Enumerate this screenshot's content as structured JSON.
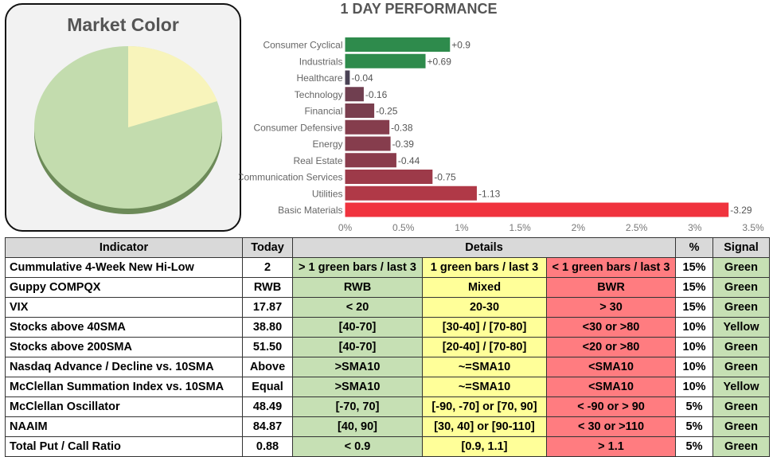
{
  "market_color": {
    "title": "Market Color",
    "colors": {
      "green": "#c3dcae",
      "yellow": "#f8f4bb",
      "green_side": "#6c8a58"
    }
  },
  "chart_data": {
    "type": "bar",
    "orientation": "horizontal",
    "title": "1 DAY PERFORMANCE",
    "categories": [
      "Consumer Cyclical",
      "Industrials",
      "Healthcare",
      "Technology",
      "Financial",
      "Consumer Defensive",
      "Energy",
      "Real Estate",
      "Communication Services",
      "Utilities",
      "Basic Materials"
    ],
    "values": [
      0.9,
      0.69,
      -0.04,
      -0.16,
      -0.25,
      -0.38,
      -0.39,
      -0.44,
      -0.75,
      -1.13,
      -3.29
    ],
    "value_labels": [
      "+0.9",
      "+0.69",
      "-0.04",
      "-0.16",
      "-0.25",
      "-0.38",
      "-0.39",
      "-0.44",
      "-0.75",
      "-1.13",
      "-3.29"
    ],
    "x_ticks": [
      "0%",
      "0.5%",
      "1%",
      "1.5%",
      "2%",
      "2.5%",
      "3%",
      "3.5%"
    ],
    "xlim": [
      0,
      3.5
    ],
    "bar_length": "absolute value",
    "colors": {
      "positive": "#2e8b4c",
      "negative_dark": "#4a4255",
      "negative_bright": "#f0333e"
    }
  },
  "table": {
    "headers": {
      "indicator": "Indicator",
      "today": "Today",
      "details": "Details",
      "pct": "%",
      "signal": "Signal"
    },
    "rows": [
      {
        "name": "Cummulative 4-Week New Hi-Low",
        "today": "2",
        "green": "> 1 green bars / last 3",
        "yellow": "1 green bars / last 3",
        "red": "< 1 green bars / last 3",
        "pct": "15%",
        "signal": "Green"
      },
      {
        "name": "Guppy COMPQX",
        "today": "RWB",
        "green": "RWB",
        "yellow": "Mixed",
        "red": "BWR",
        "pct": "15%",
        "signal": "Green"
      },
      {
        "name": "VIX",
        "today": "17.87",
        "green": "< 20",
        "yellow": "20-30",
        "red": "> 30",
        "pct": "15%",
        "signal": "Green"
      },
      {
        "name": "Stocks above 40SMA",
        "today": "38.80",
        "green": "[40-70]",
        "yellow": "[30-40] / [70-80]",
        "red": "<30 or >80",
        "pct": "10%",
        "signal": "Yellow"
      },
      {
        "name": "Stocks above 200SMA",
        "today": "51.50",
        "green": "[40-70]",
        "yellow": "[20-40] / [70-80]",
        "red": "<20 or >80",
        "pct": "10%",
        "signal": "Green"
      },
      {
        "name": "Nasdaq Advance / Decline vs. 10SMA",
        "today": "Above",
        "green": ">SMA10",
        "yellow": "~=SMA10",
        "red": "<SMA10",
        "pct": "10%",
        "signal": "Green"
      },
      {
        "name": "McClellan Summation Index vs. 10SMA",
        "today": "Equal",
        "green": ">SMA10",
        "yellow": "~=SMA10",
        "red": "<SMA10",
        "pct": "10%",
        "signal": "Yellow"
      },
      {
        "name": "McClellan Oscillator",
        "today": "48.49",
        "green": "[-70,  70]",
        "yellow": "[-90, -70] or [70, 90]",
        "red": "< -90 or > 90",
        "pct": "5%",
        "signal": "Green"
      },
      {
        "name": "NAAIM",
        "today": "84.87",
        "green": "[40, 90]",
        "yellow": "[30, 40] or [90-110]",
        "red": "< 30 or >110",
        "pct": "5%",
        "signal": "Green"
      },
      {
        "name": "Total Put / Call Ratio",
        "today": "0.88",
        "green": "< 0.9",
        "yellow": "[0.9, 1.1]",
        "red": "> 1.1",
        "pct": "5%",
        "signal": "Green"
      }
    ]
  }
}
